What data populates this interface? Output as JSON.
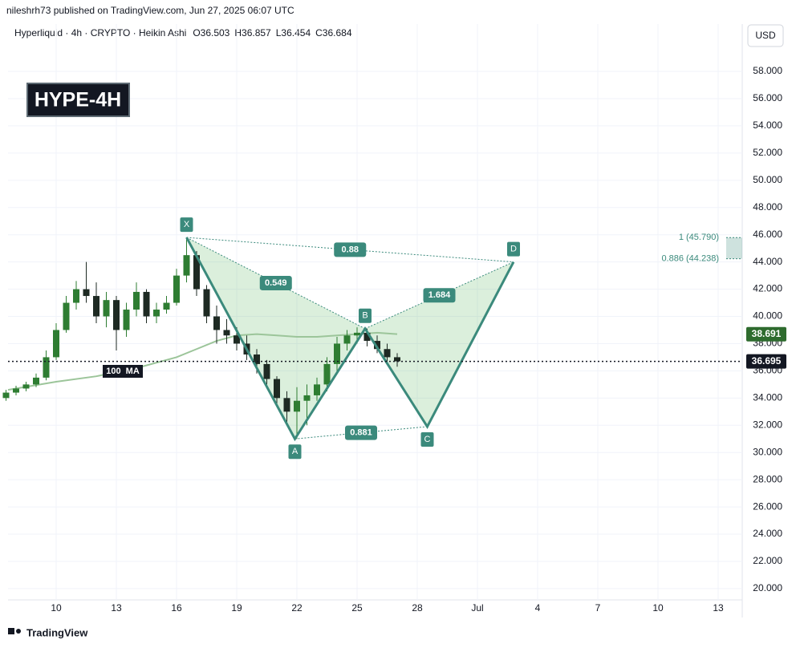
{
  "header": {
    "published": "nileshrh73 published on TradingView.com, Jun 27, 2025 06:07 UTC",
    "symbol": "Hyperliquid · 4h · CRYPTO · Heikin Ashi",
    "open": "O36.503",
    "high": "H36.857",
    "low": "L36.454",
    "close": "C36.684",
    "currency": "USD"
  },
  "footer": {
    "brand": "TradingView"
  },
  "chart_data": {
    "type": "candlestick",
    "title": "HYPE-4H",
    "x": [
      7.5,
      8,
      8.5,
      9,
      9.5,
      10,
      10.5,
      11,
      11.5,
      12,
      12.5,
      13,
      13.5,
      14,
      14.5,
      15,
      15.5,
      16,
      16.5,
      17,
      17.5,
      18,
      18.5,
      19,
      19.5,
      20,
      20.5,
      21,
      21.5,
      22,
      22.5,
      23,
      23.5,
      24,
      24.5,
      25,
      25.5,
      26,
      26.5,
      27
    ],
    "open": [
      34.0,
      34.4,
      34.7,
      35.0,
      35.5,
      37.0,
      39.0,
      41.0,
      42.0,
      41.5,
      40.0,
      41.2,
      39.0,
      40.5,
      41.8,
      40.0,
      40.5,
      41.0,
      43.0,
      44.5,
      42.0,
      40.0,
      39.0,
      38.6,
      38.0,
      37.2,
      36.5,
      35.4,
      34.0,
      33.0,
      33.8,
      34.2,
      35.0,
      36.5,
      38.0,
      38.6,
      38.8,
      38.2,
      37.6,
      37.0
    ],
    "high": [
      34.6,
      34.9,
      35.2,
      35.8,
      37.5,
      39.5,
      41.5,
      42.6,
      44.0,
      42.5,
      41.8,
      41.5,
      41.0,
      42.5,
      42.0,
      41.0,
      41.5,
      43.5,
      45.8,
      44.8,
      42.3,
      40.8,
      39.8,
      39.2,
      38.6,
      37.6,
      36.8,
      35.6,
      34.5,
      34.8,
      35.0,
      35.5,
      37.0,
      38.5,
      39.0,
      39.2,
      39.1,
      38.6,
      38.0,
      37.3
    ],
    "low": [
      33.8,
      34.2,
      34.5,
      34.8,
      35.3,
      36.8,
      38.8,
      40.5,
      41.0,
      39.5,
      39.2,
      37.5,
      38.5,
      40.0,
      39.5,
      39.5,
      40.2,
      40.8,
      42.5,
      41.5,
      39.5,
      38.0,
      38.0,
      37.5,
      36.8,
      35.8,
      35.0,
      33.5,
      32.0,
      31.0,
      32.0,
      33.8,
      34.5,
      36.0,
      37.5,
      38.0,
      37.8,
      37.3,
      36.5,
      36.3
    ],
    "close": [
      34.4,
      34.7,
      35.0,
      35.5,
      37.0,
      39.0,
      41.0,
      42.0,
      41.5,
      40.0,
      41.2,
      39.0,
      40.5,
      41.8,
      40.0,
      40.5,
      41.0,
      43.0,
      44.5,
      42.0,
      40.0,
      39.0,
      38.6,
      38.0,
      37.2,
      36.5,
      35.4,
      34.0,
      33.0,
      33.8,
      34.2,
      35.0,
      36.5,
      38.0,
      38.6,
      38.8,
      38.2,
      37.6,
      37.0,
      36.7
    ],
    "up_color": "#2e7d32",
    "down_color": "#1e2a23",
    "ma": {
      "label": "100  MA",
      "color": "#9cc59a",
      "x": [
        7.6,
        10,
        12,
        14,
        16,
        17,
        18,
        19,
        20,
        21,
        22,
        23,
        24,
        25,
        26,
        27
      ],
      "values": [
        34.6,
        35.2,
        35.6,
        36.2,
        37.0,
        37.6,
        38.2,
        38.6,
        38.7,
        38.6,
        38.5,
        38.5,
        38.6,
        38.7,
        38.8,
        38.7
      ]
    },
    "pattern": {
      "color": "#3b8a7c",
      "points": [
        {
          "label": "X",
          "x": 16.5,
          "y": 45.8
        },
        {
          "label": "A",
          "x": 21.9,
          "y": 31.0
        },
        {
          "label": "B",
          "x": 25.4,
          "y": 39.1
        },
        {
          "label": "C",
          "x": 28.5,
          "y": 31.9
        },
        {
          "label": "D",
          "x": 32.8,
          "y": 44.0
        }
      ],
      "ratios": [
        0.549,
        0.88,
        0.881,
        1.684
      ]
    },
    "fib_levels": [
      {
        "value": 45.79,
        "label": "1 (45.790)"
      },
      {
        "value": 44.238,
        "label": "0.886 (44.238)"
      }
    ],
    "price_tags": [
      {
        "value": 38.691,
        "color": "#2e6b2e"
      },
      {
        "value": 36.695,
        "color": "#131722"
      }
    ],
    "xlim": [
      7.6,
      44.2
    ],
    "ylim": [
      19.17,
      61.48
    ],
    "xticks": [
      10,
      13,
      16,
      19,
      22,
      25,
      28,
      {
        "value": 31,
        "label": "Jul"
      },
      {
        "value": 34,
        "label": "4"
      },
      {
        "value": 37,
        "label": "7"
      },
      {
        "value": 40,
        "label": "10"
      },
      {
        "value": 43,
        "label": "13"
      }
    ],
    "yticks": [
      {
        "value": 20,
        "label": "20.000"
      },
      {
        "value": 22,
        "label": "22.000"
      },
      {
        "value": 24,
        "label": "24.000"
      },
      {
        "value": 26,
        "label": "26.000"
      },
      {
        "value": 28,
        "label": "28.000"
      },
      {
        "value": 30,
        "label": "30.000"
      },
      {
        "value": 32,
        "label": "32.000"
      },
      {
        "value": 34,
        "label": "34.000"
      },
      {
        "value": 36,
        "label": "36.000"
      },
      {
        "value": 38,
        "label": "38.000"
      },
      {
        "value": 40,
        "label": "40.000"
      },
      {
        "value": 42,
        "label": "42.000"
      },
      {
        "value": 44,
        "label": "44.000"
      },
      {
        "value": 46,
        "label": "46.000"
      },
      {
        "value": 48,
        "label": "48.000"
      },
      {
        "value": 50,
        "label": "50.000"
      },
      {
        "value": 52,
        "label": "52.000"
      },
      {
        "value": 54,
        "label": "54.000"
      },
      {
        "value": 56,
        "label": "56.000"
      },
      {
        "value": 58,
        "label": "58.000"
      }
    ],
    "grid": true
  }
}
